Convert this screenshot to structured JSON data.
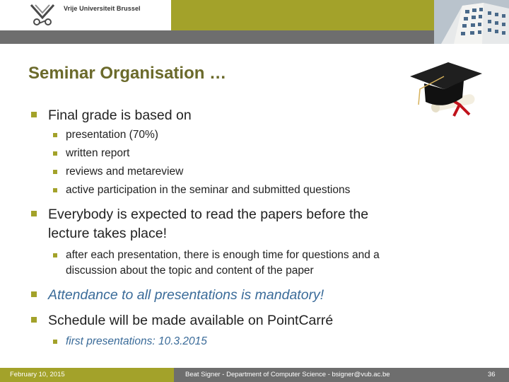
{
  "header": {
    "university_name": "Vrije Universiteit Brussel",
    "colors": {
      "olive": "#a3a22a",
      "gray": "#6e6e6e"
    }
  },
  "slide": {
    "title": "Seminar Organisation …",
    "bullets": [
      {
        "text": "Final grade is based on",
        "sub": [
          "presentation (70%)",
          "written report",
          "reviews and metareview",
          "active participation in the seminar and submitted questions"
        ]
      },
      {
        "text_line1": "Everybody is expected to read the papers before the",
        "text_line2": "lecture takes place!",
        "sub_line1": "after each presentation, there is enough time for questions and a",
        "sub_line2": "discussion about the topic and content of the paper"
      },
      {
        "text": "Attendance to all presentations is mandatory!",
        "style": "italic"
      },
      {
        "text": "Schedule will be made available on PointCarré",
        "sub": [
          "first presentations: 10.3.2015"
        ]
      }
    ]
  },
  "footer": {
    "date": "February 10, 2015",
    "author": "Beat Signer - Department of Computer Science - bsigner@vub.ac.be",
    "page_number": "36"
  },
  "icons": [
    "vub-logo-icon",
    "building-photo",
    "graduation-cap-icon"
  ]
}
